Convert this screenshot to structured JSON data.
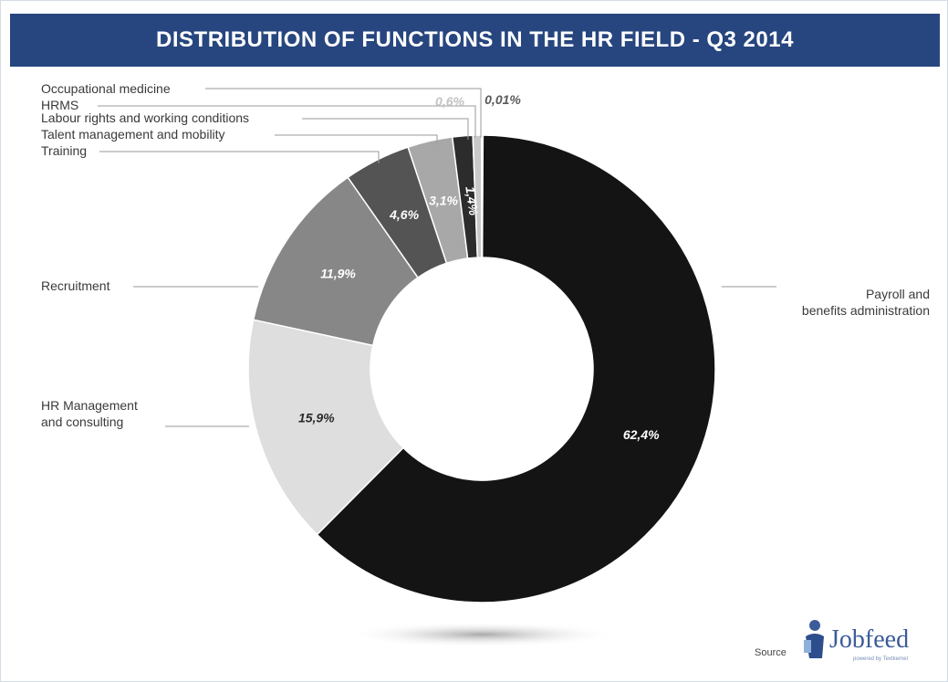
{
  "title": "DISTRIBUTION OF FUNCTIONS IN THE HR FIELD - Q3 2014",
  "chart_data": {
    "type": "pie",
    "variant": "donut",
    "title": "DISTRIBUTION OF FUNCTIONS IN THE HR FIELD - Q3 2014",
    "slices": [
      {
        "label": "Payroll and benefits administration",
        "label_lines": [
          "Payroll and",
          "benefits administration"
        ],
        "value": 62.4,
        "display": "62,4%",
        "color": "#141414"
      },
      {
        "label": "HR Management and consulting",
        "label_lines": [
          "HR Management",
          "and consulting"
        ],
        "value": 15.9,
        "display": "15,9%",
        "color": "#dedede"
      },
      {
        "label": "Recruitment",
        "label_lines": [
          "Recruitment"
        ],
        "value": 11.9,
        "display": "11,9%",
        "color": "#878787"
      },
      {
        "label": "Training",
        "label_lines": [
          "Training"
        ],
        "value": 4.6,
        "display": "4,6%",
        "color": "#545454"
      },
      {
        "label": "Talent management and mobility",
        "label_lines": [
          "Talent management and mobility"
        ],
        "value": 3.1,
        "display": "3,1%",
        "color": "#a8a8a8"
      },
      {
        "label": "Labour rights and working conditions",
        "label_lines": [
          "Labour rights and working conditions"
        ],
        "value": 1.4,
        "display": "1,4%",
        "color": "#2c2c2c"
      },
      {
        "label": "HRMS",
        "label_lines": [
          "HRMS"
        ],
        "value": 0.6,
        "display": "0,6%",
        "color": "#c9c9c9"
      },
      {
        "label": "Occupational medicine",
        "label_lines": [
          "Occupational medicine"
        ],
        "value": 0.01,
        "display": "0,01%",
        "color": "#8a8a8a"
      }
    ],
    "legend": "none"
  },
  "source": {
    "label": "Source",
    "logo_text": "Jobfeed",
    "logo_tagline": "powered by Textkernel"
  },
  "colors": {
    "banner": "#27467f",
    "leader_line": "#9a9a9a",
    "label_text": "#3a3a3a"
  }
}
